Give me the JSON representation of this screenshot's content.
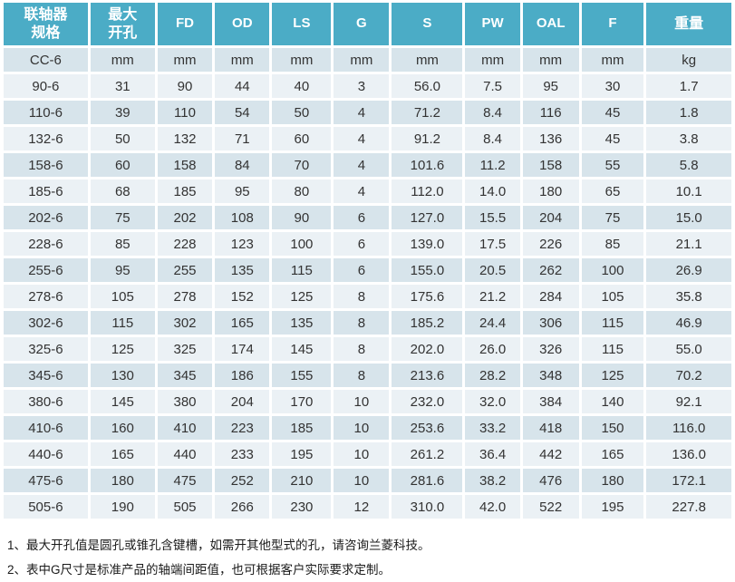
{
  "table": {
    "colors": {
      "header_bg": "#4BACC6",
      "header_text": "#ffffff",
      "row_dark": "#D7E4EB",
      "row_light": "#EBF1F5",
      "cell_text": "#333333"
    },
    "headers": [
      "联轴器\n规格",
      "最大\n开孔",
      "FD",
      "OD",
      "LS",
      "G",
      "S",
      "PW",
      "OAL",
      "F",
      "重量"
    ],
    "units_row": [
      "CC-6",
      "mm",
      "mm",
      "mm",
      "mm",
      "mm",
      "mm",
      "mm",
      "mm",
      "mm",
      "kg"
    ],
    "col_widths_pct": [
      12.0,
      9.2,
      7.8,
      7.8,
      8.4,
      7.9,
      10.1,
      7.8,
      8.0,
      8.9,
      12.1
    ],
    "rows": [
      [
        "90-6",
        "31",
        "90",
        "44",
        "40",
        "3",
        "56.0",
        "7.5",
        "95",
        "30",
        "1.7"
      ],
      [
        "110-6",
        "39",
        "110",
        "54",
        "50",
        "4",
        "71.2",
        "8.4",
        "116",
        "45",
        "1.8"
      ],
      [
        "132-6",
        "50",
        "132",
        "71",
        "60",
        "4",
        "91.2",
        "8.4",
        "136",
        "45",
        "3.8"
      ],
      [
        "158-6",
        "60",
        "158",
        "84",
        "70",
        "4",
        "101.6",
        "11.2",
        "158",
        "55",
        "5.8"
      ],
      [
        "185-6",
        "68",
        "185",
        "95",
        "80",
        "4",
        "112.0",
        "14.0",
        "180",
        "65",
        "10.1"
      ],
      [
        "202-6",
        "75",
        "202",
        "108",
        "90",
        "6",
        "127.0",
        "15.5",
        "204",
        "75",
        "15.0"
      ],
      [
        "228-6",
        "85",
        "228",
        "123",
        "100",
        "6",
        "139.0",
        "17.5",
        "226",
        "85",
        "21.1"
      ],
      [
        "255-6",
        "95",
        "255",
        "135",
        "115",
        "6",
        "155.0",
        "20.5",
        "262",
        "100",
        "26.9"
      ],
      [
        "278-6",
        "105",
        "278",
        "152",
        "125",
        "8",
        "175.6",
        "21.2",
        "284",
        "105",
        "35.8"
      ],
      [
        "302-6",
        "115",
        "302",
        "165",
        "135",
        "8",
        "185.2",
        "24.4",
        "306",
        "115",
        "46.9"
      ],
      [
        "325-6",
        "125",
        "325",
        "174",
        "145",
        "8",
        "202.0",
        "26.0",
        "326",
        "115",
        "55.0"
      ],
      [
        "345-6",
        "130",
        "345",
        "186",
        "155",
        "8",
        "213.6",
        "28.2",
        "348",
        "125",
        "70.2"
      ],
      [
        "380-6",
        "145",
        "380",
        "204",
        "170",
        "10",
        "232.0",
        "32.0",
        "384",
        "140",
        "92.1"
      ],
      [
        "410-6",
        "160",
        "410",
        "223",
        "185",
        "10",
        "253.6",
        "33.2",
        "418",
        "150",
        "116.0"
      ],
      [
        "440-6",
        "165",
        "440",
        "233",
        "195",
        "10",
        "261.2",
        "36.4",
        "442",
        "165",
        "136.0"
      ],
      [
        "475-6",
        "180",
        "475",
        "252",
        "210",
        "10",
        "281.6",
        "38.2",
        "476",
        "180",
        "172.1"
      ],
      [
        "505-6",
        "190",
        "505",
        "266",
        "230",
        "12",
        "310.0",
        "42.0",
        "522",
        "195",
        "227.8"
      ]
    ]
  },
  "footnotes": [
    "1、最大开孔值是圆孔或锥孔含键槽，如需开其他型式的孔，请咨询兰菱科技。",
    "2、表中G尺寸是标准产品的轴端间距值，也可根据客户实际要求定制。"
  ]
}
